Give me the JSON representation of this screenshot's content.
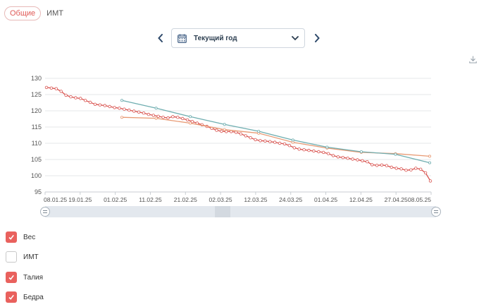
{
  "tabs": [
    {
      "label": "Общие",
      "active": true
    },
    {
      "label": "ИМТ",
      "active": false
    }
  ],
  "period": {
    "label": "Текущий год"
  },
  "chart_data": {
    "type": "line",
    "ylim": [
      95,
      130
    ],
    "y_ticks": [
      "95",
      "100",
      "105",
      "110",
      "115",
      "120",
      "125",
      "130"
    ],
    "x_ticks": [
      "08.01.25",
      "19.01.25",
      "01.02.25",
      "11.02.25",
      "21.02.25",
      "02.03.25",
      "12.03.25",
      "24.03.25",
      "01.04.25",
      "12.04.25",
      "27.04.25",
      "08.05.25"
    ],
    "series": [
      {
        "color": "#d9534f",
        "values": [
          127.2,
          127.0,
          126.8,
          126.0,
          124.8,
          124.3,
          124.0,
          123.8,
          123.2,
          122.6,
          122.0,
          121.8,
          121.6,
          121.3,
          121.0,
          120.8,
          120.5,
          120.2,
          119.9,
          119.6,
          119.3,
          118.9,
          118.6,
          118.3,
          118.0,
          117.8,
          118.2,
          118.0,
          117.6,
          117.2,
          116.7,
          116.2,
          115.7,
          115.2,
          114.6,
          114.0,
          113.7,
          113.6,
          113.6,
          113.4,
          112.9,
          112.3,
          111.7,
          111.1,
          110.8,
          110.7,
          110.5,
          110.3,
          110.0,
          109.8,
          109.3,
          108.6,
          108.2,
          108.0,
          107.8,
          107.6,
          107.4,
          107.2,
          106.8,
          106.2,
          105.8,
          105.6,
          105.4,
          105.1,
          104.9,
          104.6,
          104.3,
          103.4,
          103.2,
          103.3,
          103.1,
          102.6,
          102.3,
          102.1,
          101.7,
          101.8,
          102.3,
          102.0,
          100.9,
          98.4
        ]
      },
      {
        "color": "#e89a74",
        "values": [
          118.0,
          117.7,
          116.2,
          114.2,
          113.1,
          110.3,
          108.5,
          107.2,
          106.8,
          106.0
        ]
      },
      {
        "color": "#6faeb0",
        "values": [
          123.2,
          120.8,
          118.2,
          115.8,
          113.7,
          111.0,
          108.8,
          107.4,
          106.6,
          104.0
        ]
      }
    ]
  },
  "legend": [
    {
      "label": "Вес",
      "checked": true
    },
    {
      "label": "ИМТ",
      "checked": false
    },
    {
      "label": "Талия",
      "checked": true
    },
    {
      "label": "Бедра",
      "checked": true
    }
  ]
}
